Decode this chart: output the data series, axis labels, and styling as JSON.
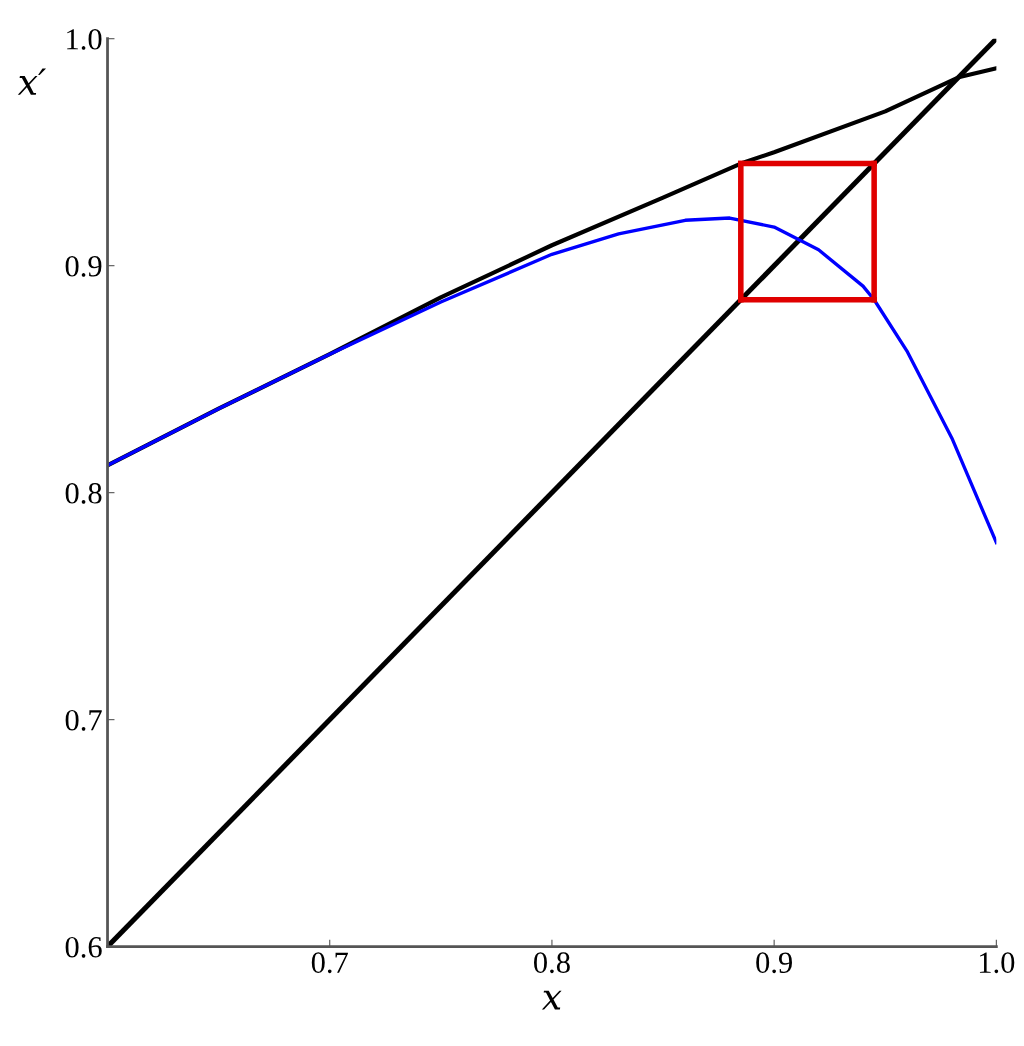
{
  "chart_data": {
    "type": "line",
    "xlabel": "x",
    "ylabel": "x′",
    "xlim": [
      0.6,
      1.0
    ],
    "ylim": [
      0.6,
      1.0
    ],
    "xticks": [
      {
        "value": 0.6,
        "label": null
      },
      0.7,
      0.8,
      0.9,
      {
        "value": 1.0,
        "label": "1.0"
      }
    ],
    "yticks": [
      0.6,
      0.7,
      0.8,
      0.9,
      {
        "value": 1.0,
        "label": "1.0"
      }
    ],
    "grid": false,
    "legend": false,
    "marker": "none",
    "line_style": "solid",
    "series": [
      {
        "color": "#000000",
        "x": [
          0.6,
          1.0
        ],
        "values": [
          0.6,
          1.0
        ]
      },
      {
        "color": "#000000",
        "x": [
          0.6,
          0.65,
          0.7,
          0.75,
          0.8,
          0.85,
          0.885,
          0.9,
          0.95,
          0.983,
          1.0
        ],
        "values": [
          0.812,
          0.837,
          0.861,
          0.886,
          0.909,
          0.93,
          0.945,
          0.95,
          0.968,
          0.983,
          0.987
        ]
      },
      {
        "color": "#0000ff",
        "x": [
          0.6,
          0.65,
          0.7,
          0.75,
          0.8,
          0.83,
          0.86,
          0.88,
          0.9,
          0.92,
          0.94,
          0.945,
          0.96,
          0.98,
          1.0
        ],
        "values": [
          0.812,
          0.837,
          0.861,
          0.884,
          0.905,
          0.914,
          0.92,
          0.921,
          0.917,
          0.907,
          0.891,
          0.885,
          0.862,
          0.824,
          0.778
        ]
      },
      {
        "color": "#e00000",
        "x": [
          0.885,
          0.945
        ],
        "values": [
          0.885,
          0.885
        ]
      },
      {
        "color": "#e00000",
        "x": [
          0.945,
          0.945
        ],
        "values": [
          0.885,
          0.945
        ]
      },
      {
        "color": "#e00000",
        "x": [
          0.945,
          0.885
        ],
        "values": [
          0.945,
          0.945
        ]
      },
      {
        "color": "#e00000",
        "x": [
          0.885,
          0.885
        ],
        "values": [
          0.945,
          0.885
        ]
      }
    ]
  }
}
